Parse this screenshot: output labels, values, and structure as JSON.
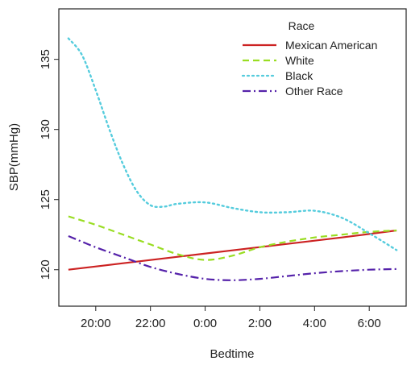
{
  "chart_data": {
    "type": "line",
    "xlabel": "Bedtime",
    "ylabel": "SBP(mmHg)",
    "x_ticks": [
      "20:00",
      "22:00",
      "0:00",
      "2:00",
      "4:00",
      "6:00"
    ],
    "x_tick_hours": [
      20,
      22,
      24,
      26,
      28,
      30
    ],
    "xlim": [
      18.65,
      31.35
    ],
    "y_ticks": [
      120,
      125,
      130,
      135
    ],
    "ylim": [
      117.4,
      138.6
    ],
    "legend_title": "Race",
    "legend_position": "top-right",
    "series": [
      {
        "name": "Mexican American",
        "color": "#cc2222",
        "dash": "solid",
        "x": [
          19,
          21,
          23,
          25,
          27,
          29,
          31
        ],
        "y": [
          120.0,
          120.46,
          120.92,
          121.38,
          121.84,
          122.3,
          122.8
        ]
      },
      {
        "name": "White",
        "color": "#99dd22",
        "dash": "dashed",
        "x": [
          19,
          20,
          21,
          22,
          23,
          24,
          25,
          26,
          27,
          28,
          29,
          30,
          31
        ],
        "y": [
          123.8,
          123.2,
          122.5,
          121.8,
          121.1,
          120.7,
          121.0,
          121.6,
          122.0,
          122.3,
          122.5,
          122.7,
          122.8
        ]
      },
      {
        "name": "Black",
        "color": "#55ccdd",
        "dash": "dotted",
        "x": [
          19,
          19.5,
          20,
          20.5,
          21,
          21.5,
          22,
          22.5,
          23,
          24,
          25,
          26,
          27,
          28,
          29,
          30,
          31
        ],
        "y": [
          136.5,
          135.3,
          132.8,
          130.0,
          127.5,
          125.6,
          124.6,
          124.5,
          124.7,
          124.8,
          124.4,
          124.1,
          124.1,
          124.2,
          123.7,
          122.6,
          121.4
        ]
      },
      {
        "name": "Other Race",
        "color": "#5522aa",
        "dash": "dotdash",
        "x": [
          19,
          20,
          21,
          22,
          23,
          24,
          25,
          26,
          27,
          28,
          29,
          30,
          31
        ],
        "y": [
          122.4,
          121.6,
          120.9,
          120.2,
          119.7,
          119.35,
          119.25,
          119.35,
          119.55,
          119.75,
          119.9,
          120.0,
          120.05
        ]
      }
    ]
  }
}
